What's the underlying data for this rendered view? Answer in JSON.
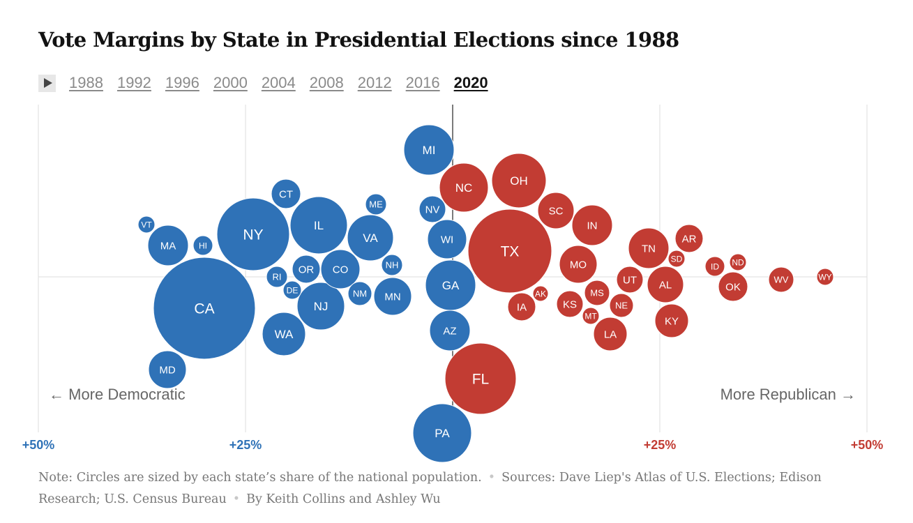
{
  "title": "Vote Margins by State in Presidential Elections since 1988",
  "years": [
    "1988",
    "1992",
    "1996",
    "2000",
    "2004",
    "2008",
    "2012",
    "2016",
    "2020"
  ],
  "active_year": "2020",
  "icons": {
    "play": "play-icon"
  },
  "colors": {
    "dem": "#2f72b7",
    "rep": "#c23c33",
    "grid": "#dddddd",
    "axis": "#222222",
    "label": "#666666"
  },
  "note": {
    "text": "Note: Circles are sized by each state’s share of the national population.",
    "sources": "Sources: Dave Liep's Atlas of U.S. Elections; Edison Research; U.S. Census Bureau",
    "byline": "By Keith Collins and Ashley Wu"
  },
  "chart_data": {
    "type": "scatter",
    "encoding": "beeswarm of circles; x = vote margin in percentage points, circle area = share of national population",
    "x_ticks": [
      {
        "value": -50,
        "label": "+50%",
        "party": "dem"
      },
      {
        "value": -25,
        "label": "+25%",
        "party": "dem"
      },
      {
        "value": 25,
        "label": "+25%",
        "party": "rep"
      },
      {
        "value": 50,
        "label": "+50%",
        "party": "rep"
      }
    ],
    "xlim": [
      -50,
      50
    ],
    "direction_labels": {
      "left": "← More Democratic",
      "right": "More Republican →"
    },
    "grid": true,
    "series": [
      {
        "party": "dem",
        "points": [
          {
            "state": "CA",
            "margin": -29.2
          },
          {
            "state": "NY",
            "margin": -23.1
          },
          {
            "state": "IL",
            "margin": -17.0
          },
          {
            "state": "NJ",
            "margin": -15.9
          },
          {
            "state": "WA",
            "margin": -19.2
          },
          {
            "state": "MA",
            "margin": -33.5
          },
          {
            "state": "MD",
            "margin": -33.2
          },
          {
            "state": "VA",
            "margin": -10.1
          },
          {
            "state": "CO",
            "margin": -13.5
          },
          {
            "state": "OR",
            "margin": -16.1
          },
          {
            "state": "CT",
            "margin": -20.0
          },
          {
            "state": "MN",
            "margin": -7.1
          },
          {
            "state": "NM",
            "margin": -10.8
          },
          {
            "state": "HI",
            "margin": -29.5
          },
          {
            "state": "VT",
            "margin": -35.4
          },
          {
            "state": "RI",
            "margin": -20.8
          },
          {
            "state": "DE",
            "margin": -19.0
          },
          {
            "state": "ME",
            "margin": -9.1
          },
          {
            "state": "NH",
            "margin": -7.4
          },
          {
            "state": "MI",
            "margin": -2.8
          },
          {
            "state": "NV",
            "margin": -2.4
          },
          {
            "state": "WI",
            "margin": -0.6
          },
          {
            "state": "GA",
            "margin": -0.2
          },
          {
            "state": "AZ",
            "margin": -0.3
          },
          {
            "state": "PA",
            "margin": -1.2
          }
        ]
      },
      {
        "party": "rep",
        "points": [
          {
            "state": "TX",
            "margin": 5.6
          },
          {
            "state": "FL",
            "margin": 3.4
          },
          {
            "state": "OH",
            "margin": 8.0
          },
          {
            "state": "NC",
            "margin": 1.3
          },
          {
            "state": "IN",
            "margin": 16.9
          },
          {
            "state": "MO",
            "margin": 15.4
          },
          {
            "state": "TN",
            "margin": 23.2
          },
          {
            "state": "SC",
            "margin": 11.7
          },
          {
            "state": "AL",
            "margin": 25.5
          },
          {
            "state": "KY",
            "margin": 26.0
          },
          {
            "state": "LA",
            "margin": 18.6
          },
          {
            "state": "OK",
            "margin": 33.1
          },
          {
            "state": "IA",
            "margin": 8.2
          },
          {
            "state": "KS",
            "margin": 14.6
          },
          {
            "state": "MS",
            "margin": 16.5
          },
          {
            "state": "AR",
            "margin": 27.6
          },
          {
            "state": "UT",
            "margin": 20.5
          },
          {
            "state": "NE",
            "margin": 19.1
          },
          {
            "state": "ID",
            "margin": 30.8
          },
          {
            "state": "WV",
            "margin": 38.9
          },
          {
            "state": "MT",
            "margin": 16.4
          },
          {
            "state": "SD",
            "margin": 26.2
          },
          {
            "state": "ND",
            "margin": 33.4
          },
          {
            "state": "AK",
            "margin": 10.1
          },
          {
            "state": "WY",
            "margin": 43.4
          }
        ]
      }
    ]
  }
}
